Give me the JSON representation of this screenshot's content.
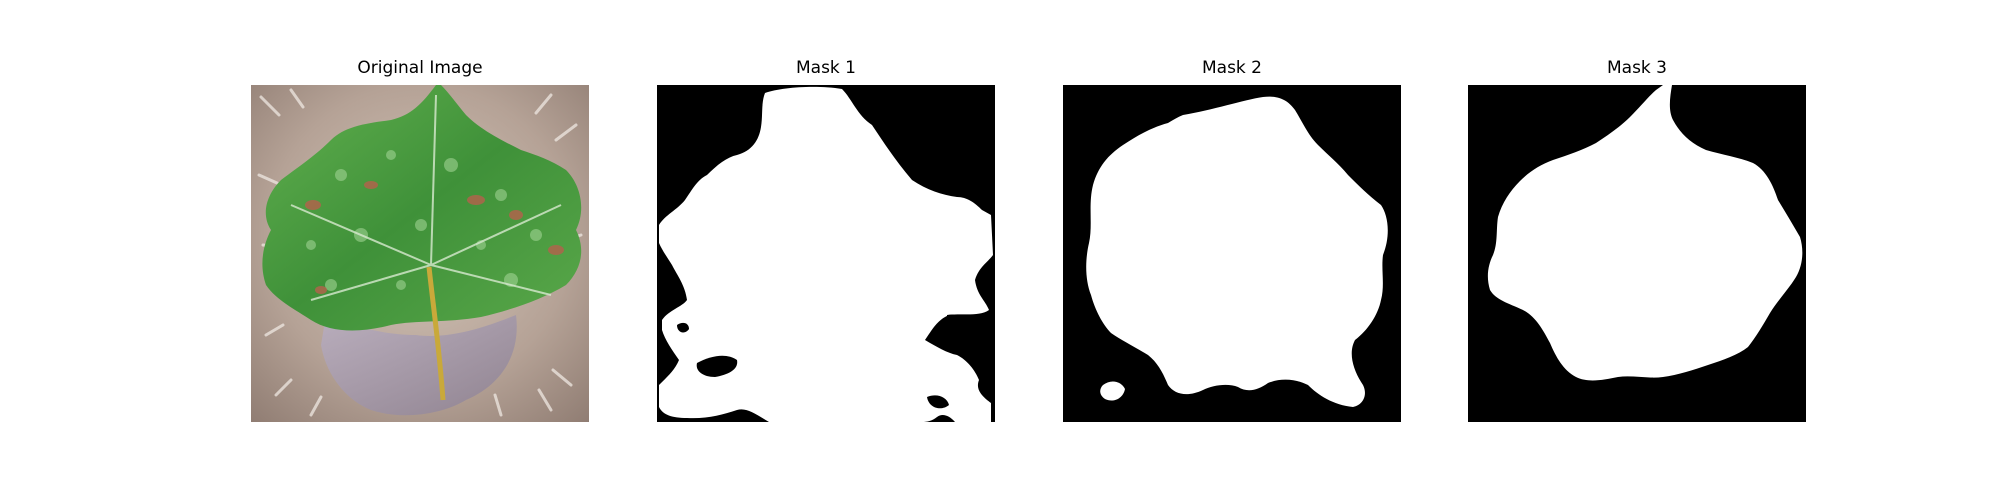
{
  "figure": {
    "panels": [
      {
        "title": "Original Image"
      },
      {
        "title": "Mask 1"
      },
      {
        "title": "Mask 2"
      },
      {
        "title": "Mask 3"
      }
    ]
  }
}
